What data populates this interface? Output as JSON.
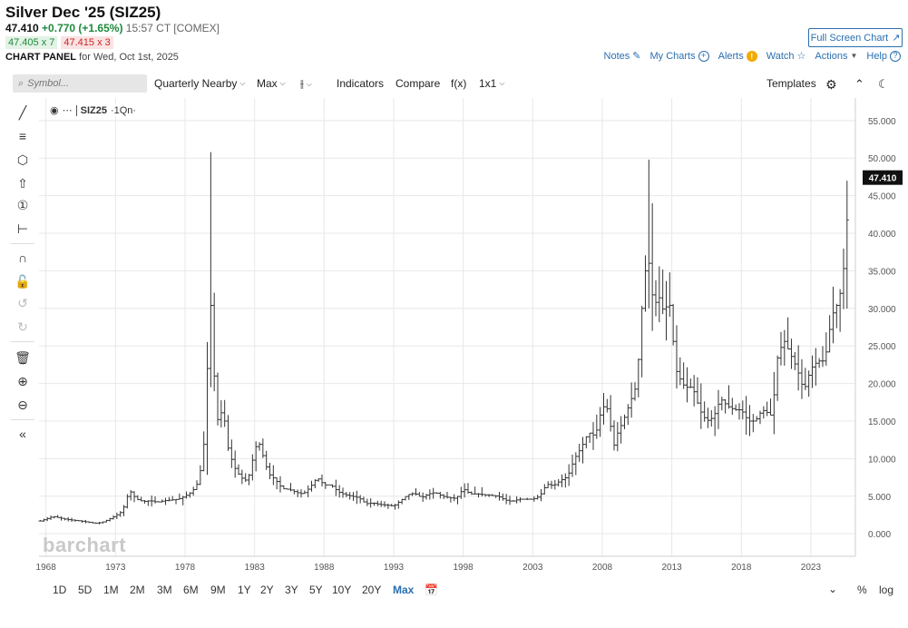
{
  "header": {
    "title": "Silver Dec '25 (SIZ25)",
    "last": "47.410",
    "change": "+0.770 (+1.65%)",
    "time": "15:57 CT [COMEX]",
    "bid": "47.405 x 7",
    "ask": "47.415 x 3",
    "panel_label": "CHART PANEL",
    "panel_date": "for Wed, Oct 1st, 2025",
    "fullscreen_label": "Full Screen Chart"
  },
  "top_links": {
    "notes": "Notes",
    "my_charts": "My Charts",
    "alerts": "Alerts",
    "watch": "Watch",
    "actions": "Actions",
    "help": "Help"
  },
  "toolbar": {
    "search_placeholder": "Symbol...",
    "aggregation": "Quarterly Nearby",
    "period": "Max",
    "indicators": "Indicators",
    "compare": "Compare",
    "fx": "f(x)",
    "layout": "1x1",
    "templates": "Templates"
  },
  "chart_label": {
    "symbol": "SIZ25",
    "interval": "·1Qn·"
  },
  "watermark": "barchart",
  "ranges": [
    "1D",
    "5D",
    "1M",
    "2M",
    "3M",
    "6M",
    "9M",
    "1Y",
    "2Y",
    "3Y",
    "5Y",
    "10Y",
    "20Y",
    "Max"
  ],
  "active_range": "Max",
  "bottom_right": {
    "percent": "%",
    "log": "log"
  },
  "colors": {
    "accent": "#2a6fb0",
    "up": "#1e8a3c",
    "down": "#c62828",
    "bar": "#333333"
  },
  "chart_data": {
    "type": "ohlc",
    "title": "",
    "xlabel": "",
    "ylabel": "",
    "ylim": [
      -3,
      58
    ],
    "y_ticks": [
      "55.000",
      "50.000",
      "45.000",
      "40.000",
      "35.000",
      "30.000",
      "25.000",
      "20.000",
      "15.000",
      "10.000",
      "5.000",
      "0.000"
    ],
    "y_tick_values": [
      55,
      50,
      45,
      40,
      35,
      30,
      25,
      20,
      15,
      10,
      5,
      0
    ],
    "x_ticks": [
      "1968",
      "1973",
      "1978",
      "1983",
      "1988",
      "1993",
      "1998",
      "2003",
      "2008",
      "2013",
      "2018",
      "2023"
    ],
    "x_tick_values": [
      1968,
      1973,
      1978,
      1983,
      1988,
      1993,
      1998,
      2003,
      2008,
      2013,
      2018,
      2023
    ],
    "xlim": [
      1967.5,
      2026.2
    ],
    "last_value_label": "47.410",
    "last_value": 47.41,
    "series_points": [
      [
        1967.6,
        1.7
      ],
      [
        1968.5,
        2.3
      ],
      [
        1969.5,
        1.9
      ],
      [
        1970.5,
        1.7
      ],
      [
        1971.5,
        1.4
      ],
      [
        1972.0,
        1.5
      ],
      [
        1972.5,
        1.9
      ],
      [
        1973.0,
        2.4
      ],
      [
        1973.5,
        3.0
      ],
      [
        1974.0,
        5.8
      ],
      [
        1974.5,
        4.6
      ],
      [
        1975.0,
        4.3
      ],
      [
        1975.5,
        4.4
      ],
      [
        1976.0,
        4.2
      ],
      [
        1976.5,
        4.4
      ],
      [
        1977.0,
        4.5
      ],
      [
        1977.5,
        4.6
      ],
      [
        1978.0,
        5.0
      ],
      [
        1978.5,
        5.6
      ],
      [
        1979.0,
        7.0
      ],
      [
        1979.5,
        14.0
      ],
      [
        1979.75,
        34.0
      ],
      [
        1980.0,
        25.0
      ],
      [
        1980.25,
        15.0
      ],
      [
        1980.5,
        15.5
      ],
      [
        1980.75,
        17.0
      ],
      [
        1981.0,
        12.0
      ],
      [
        1981.5,
        9.0
      ],
      [
        1982.0,
        7.5
      ],
      [
        1982.5,
        7.0
      ],
      [
        1983.0,
        11.0
      ],
      [
        1983.25,
        12.5
      ],
      [
        1983.5,
        11.0
      ],
      [
        1984.0,
        8.0
      ],
      [
        1984.5,
        7.2
      ],
      [
        1985.0,
        6.0
      ],
      [
        1985.5,
        5.9
      ],
      [
        1986.0,
        5.5
      ],
      [
        1986.5,
        5.3
      ],
      [
        1987.0,
        6.2
      ],
      [
        1987.5,
        7.5
      ],
      [
        1988.0,
        6.5
      ],
      [
        1988.5,
        6.5
      ],
      [
        1989.0,
        5.6
      ],
      [
        1989.5,
        5.2
      ],
      [
        1990.0,
        5.0
      ],
      [
        1990.5,
        4.8
      ],
      [
        1991.0,
        4.0
      ],
      [
        1991.5,
        4.1
      ],
      [
        1992.0,
        3.9
      ],
      [
        1992.5,
        3.8
      ],
      [
        1993.0,
        3.7
      ],
      [
        1993.5,
        4.4
      ],
      [
        1994.0,
        5.2
      ],
      [
        1994.5,
        5.4
      ],
      [
        1995.0,
        4.8
      ],
      [
        1995.5,
        5.3
      ],
      [
        1996.0,
        5.5
      ],
      [
        1996.5,
        5.0
      ],
      [
        1997.0,
        4.8
      ],
      [
        1997.5,
        4.7
      ],
      [
        1998.0,
        6.0
      ],
      [
        1998.5,
        5.3
      ],
      [
        1999.0,
        5.3
      ],
      [
        1999.5,
        5.2
      ],
      [
        2000.0,
        5.1
      ],
      [
        2000.5,
        5.0
      ],
      [
        2001.0,
        4.5
      ],
      [
        2001.5,
        4.3
      ],
      [
        2002.0,
        4.6
      ],
      [
        2002.5,
        4.6
      ],
      [
        2003.0,
        4.6
      ],
      [
        2003.5,
        5.0
      ],
      [
        2004.0,
        6.6
      ],
      [
        2004.5,
        6.4
      ],
      [
        2005.0,
        7.1
      ],
      [
        2005.5,
        7.6
      ],
      [
        2006.0,
        10.0
      ],
      [
        2006.5,
        11.5
      ],
      [
        2007.0,
        13.5
      ],
      [
        2007.5,
        13.0
      ],
      [
        2008.0,
        17.0
      ],
      [
        2008.5,
        16.5
      ],
      [
        2008.75,
        11.0
      ],
      [
        2009.0,
        13.0
      ],
      [
        2009.5,
        15.0
      ],
      [
        2010.0,
        17.5
      ],
      [
        2010.5,
        20.0
      ],
      [
        2010.75,
        28.0
      ],
      [
        2011.0,
        33.0
      ],
      [
        2011.25,
        38.0
      ],
      [
        2011.5,
        33.0
      ],
      [
        2011.75,
        30.0
      ],
      [
        2012.0,
        32.0
      ],
      [
        2012.5,
        29.0
      ],
      [
        2012.75,
        32.0
      ],
      [
        2013.0,
        28.0
      ],
      [
        2013.25,
        22.0
      ],
      [
        2013.5,
        21.0
      ],
      [
        2013.75,
        20.0
      ],
      [
        2014.0,
        19.5
      ],
      [
        2014.5,
        19.5
      ],
      [
        2015.0,
        16.5
      ],
      [
        2015.5,
        15.0
      ],
      [
        2016.0,
        15.5
      ],
      [
        2016.5,
        18.0
      ],
      [
        2017.0,
        17.0
      ],
      [
        2017.5,
        16.5
      ],
      [
        2018.0,
        16.5
      ],
      [
        2018.5,
        15.0
      ],
      [
        2019.0,
        15.0
      ],
      [
        2019.5,
        16.5
      ],
      [
        2020.0,
        16.0
      ],
      [
        2020.25,
        15.5
      ],
      [
        2020.5,
        23.0
      ],
      [
        2020.75,
        24.0
      ],
      [
        2021.0,
        26.0
      ],
      [
        2021.5,
        24.0
      ],
      [
        2022.0,
        22.0
      ],
      [
        2022.5,
        19.0
      ],
      [
        2023.0,
        22.0
      ],
      [
        2023.5,
        23.0
      ],
      [
        2024.0,
        23.0
      ],
      [
        2024.5,
        29.0
      ],
      [
        2025.0,
        31.0
      ],
      [
        2025.25,
        33.5
      ],
      [
        2025.5,
        38.0
      ],
      [
        2025.75,
        47.41
      ]
    ]
  }
}
